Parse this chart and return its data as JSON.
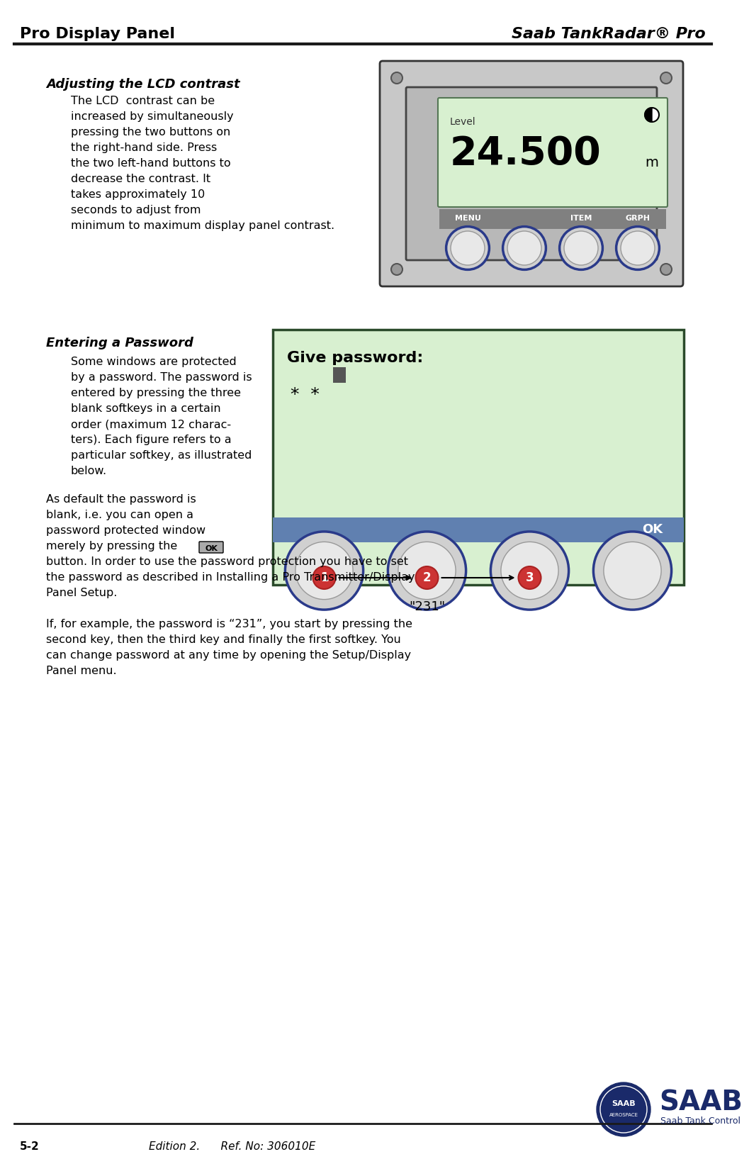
{
  "title_left": "Pro Display Panel",
  "title_right": "Saab TankRadar® Pro",
  "bg_color": "#ffffff",
  "header_line_color": "#1a1a1a",
  "section1_heading": "Adjusting the LCD contrast",
  "section1_body": "The LCD  contrast can be\nincreased by simultaneously\npressing the two buttons on\nthe right-hand side. Press\nthe two left-hand buttons to\ndecrease the contrast. It\ntakes approximately 10\nseconds to adjust from\nminimum to maximum display panel contrast.",
  "section2_heading": "Entering a Password",
  "section2_body1": "Some windows are protected\nby a password. The password is\nentered by pressing the three\nblank softkeys in a certain\norder (maximum 12 charac-\nters). Each figure refers to a\nparticular softkey, as illustrated\nbelow.",
  "section2_body2": "As default the password is\nblank, i.e. you can open a\npassword protected window\nmerely by pressing the",
  "section2_body3": "button. In order to use the password protection you have to set\nthe password as described in Installing a Pro Transmitter/Display\nPanel Setup.",
  "section2_body4": "If, for example, the password is “231”, you start by pressing the\nsecond key, then the third key and finally the first softkey. You\ncan change password at any time by opening the Setup/Display\nPanel menu.",
  "footer_left": "5-2",
  "footer_center": "Edition 2.      Ref. No: 306010E",
  "lcd_label": "Level",
  "lcd_value": "24.500",
  "lcd_unit": "m",
  "lcd_buttons": [
    "MENU",
    "",
    "ITEM",
    "GRPH"
  ],
  "password_title": "Give password:",
  "password_text": "*  *",
  "ok_label": "OK",
  "quote_label": "\"231\"",
  "panel_bg": "#c8c8c8",
  "lcd_bg": "#d8f0d0",
  "button_bar_bg": "#808080",
  "button_color": "#e8e8e8",
  "button_outline": "#2a3a8a",
  "pass_panel_bg": "#d8f0d0",
  "pass_panel_border": "#2a5a2a",
  "pass_button_bar": "#6080b0",
  "circle1_color": "#cc3333",
  "circle2_color": "#cc3333",
  "circle3_color": "#cc3333"
}
